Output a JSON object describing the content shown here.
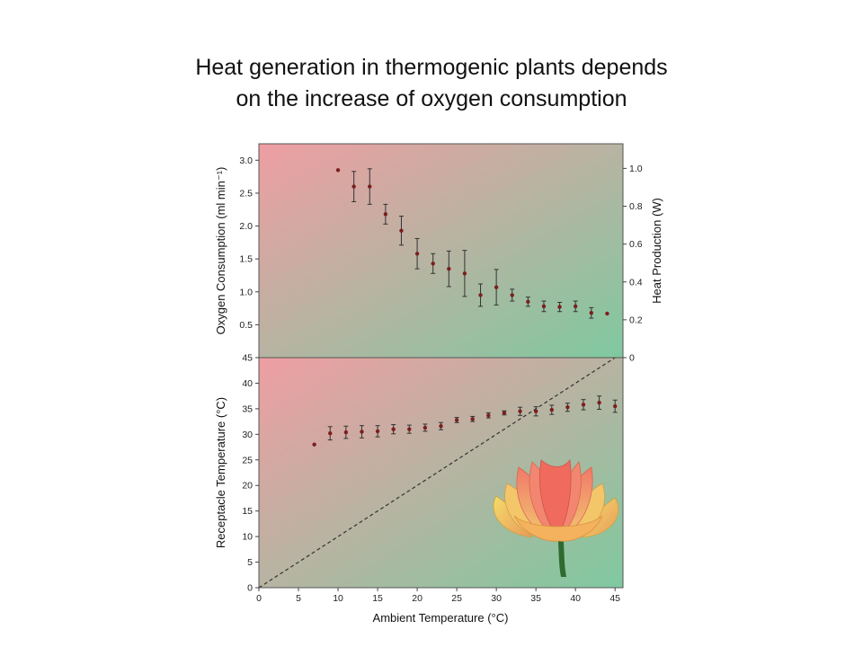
{
  "title": {
    "line1": "Heat generation in thermogenic plants depends",
    "line2": "on the increase of oxygen consumption"
  },
  "colors": {
    "gradient_start": "#ef9ea3",
    "gradient_end": "#7fc9a0",
    "marker": "#7a1f1f",
    "lotus_petal": "#f08a6e",
    "lotus_petal_edge": "#f2c870",
    "lotus_leaf": "#e8d45a",
    "lotus_stem": "#2f6b2f"
  },
  "icons": {
    "flower": "lotus-flower-icon"
  },
  "chart_data": [
    {
      "type": "scatter",
      "panel": "top",
      "xlim": [
        0,
        46
      ],
      "ylim": [
        0.0,
        3.25
      ],
      "ylabel": "Oxygen Consumption (ml min⁻¹)",
      "y2label": "Heat Production (W)",
      "y2lim": [
        0,
        1.13
      ],
      "yticks": [
        "0.5",
        "1.0",
        "1.5",
        "2.0",
        "2.5",
        "3.0"
      ],
      "y2ticks": [
        "0",
        "0.2",
        "0.4",
        "0.6",
        "0.8",
        "1.0"
      ],
      "series": [
        {
          "x": [
            10,
            12,
            14,
            16,
            18,
            20,
            22,
            24,
            26,
            28,
            30,
            32,
            34,
            36,
            38,
            40,
            42,
            44
          ],
          "y": [
            2.85,
            2.6,
            2.6,
            2.18,
            1.93,
            1.58,
            1.43,
            1.35,
            1.28,
            0.95,
            1.07,
            0.95,
            0.85,
            0.78,
            0.77,
            0.78,
            0.68,
            0.67
          ],
          "err": [
            0,
            0.23,
            0.27,
            0.15,
            0.22,
            0.23,
            0.15,
            0.27,
            0.35,
            0.17,
            0.27,
            0.09,
            0.07,
            0.08,
            0.07,
            0.08,
            0.08,
            0
          ]
        }
      ]
    },
    {
      "type": "scatter",
      "panel": "bottom",
      "xlim": [
        0,
        46
      ],
      "ylim": [
        0,
        45
      ],
      "xlabel": "Ambient Temperature (°C)",
      "ylabel": "Receptacle Temperature (°C)",
      "xticks": [
        "0",
        "5",
        "10",
        "15",
        "20",
        "25",
        "30",
        "35",
        "40",
        "45"
      ],
      "yticks": [
        "0",
        "5",
        "10",
        "15",
        "20",
        "25",
        "30",
        "35",
        "40",
        "45"
      ],
      "reference_line": {
        "style": "dashed",
        "x": [
          0,
          46
        ],
        "y": [
          0,
          46
        ]
      },
      "series": [
        {
          "x": [
            7,
            9,
            11,
            13,
            15,
            17,
            19,
            21,
            23,
            25,
            27,
            29,
            31,
            33,
            35,
            37,
            39,
            41,
            43,
            45
          ],
          "y": [
            28.0,
            30.2,
            30.4,
            30.5,
            30.6,
            31.0,
            31.0,
            31.3,
            31.6,
            32.8,
            33.0,
            33.7,
            34.2,
            34.5,
            34.5,
            34.8,
            35.3,
            35.8,
            36.2,
            35.5
          ],
          "err": [
            0,
            1.3,
            1.2,
            1.2,
            1.1,
            0.9,
            0.8,
            0.7,
            0.7,
            0.5,
            0.5,
            0.5,
            0.4,
            0.8,
            0.9,
            0.9,
            0.8,
            1.0,
            1.3,
            1.2
          ]
        }
      ]
    }
  ]
}
